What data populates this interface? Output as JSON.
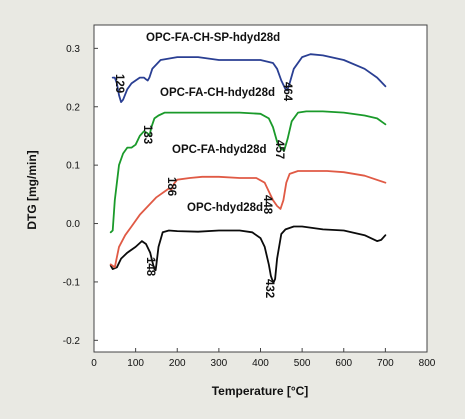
{
  "chart_data": {
    "type": "line",
    "title": "",
    "xlabel": "Temperature [°C]",
    "ylabel": "DTG [mg/min]",
    "xlim": [
      0,
      800
    ],
    "ylim": [
      -0.22,
      0.34
    ],
    "x_ticks": [
      "0",
      "100",
      "200",
      "300",
      "400",
      "500",
      "600",
      "700",
      "800"
    ],
    "y_ticks": [
      "-0.2",
      "-0.1",
      "0.0",
      "0.1",
      "0.2",
      "0.3"
    ],
    "grid": false,
    "legend": "none",
    "series": [
      {
        "name": "OPC-hdyd28d",
        "color": "#0b0b0b",
        "x": [
          40,
          45,
          55,
          65,
          80,
          100,
          115,
          125,
          135,
          140,
          145,
          148,
          150,
          155,
          165,
          180,
          200,
          250,
          300,
          350,
          380,
          400,
          410,
          420,
          425,
          430,
          432,
          435,
          440,
          450,
          460,
          480,
          500,
          550,
          600,
          650,
          680,
          690,
          700
        ],
        "y": [
          -0.072,
          -0.078,
          -0.075,
          -0.06,
          -0.05,
          -0.04,
          -0.03,
          -0.035,
          -0.05,
          -0.065,
          -0.078,
          -0.08,
          -0.07,
          -0.04,
          -0.015,
          -0.012,
          -0.013,
          -0.014,
          -0.012,
          -0.012,
          -0.015,
          -0.025,
          -0.04,
          -0.07,
          -0.09,
          -0.1,
          -0.1,
          -0.095,
          -0.06,
          -0.018,
          -0.01,
          -0.005,
          -0.005,
          -0.01,
          -0.012,
          -0.02,
          -0.03,
          -0.028,
          -0.02
        ]
      },
      {
        "name": "OPC-FA-hdyd28d",
        "color": "#e05a45",
        "x": [
          40,
          50,
          60,
          75,
          90,
          110,
          130,
          150,
          170,
          180,
          186,
          192,
          200,
          230,
          260,
          300,
          350,
          390,
          410,
          420,
          430,
          440,
          448,
          455,
          462,
          470,
          490,
          520,
          560,
          600,
          650,
          700
        ],
        "y": [
          -0.07,
          -0.075,
          -0.04,
          -0.02,
          -0.005,
          0.015,
          0.03,
          0.045,
          0.055,
          0.06,
          0.058,
          0.068,
          0.075,
          0.078,
          0.08,
          0.08,
          0.078,
          0.078,
          0.07,
          0.055,
          0.04,
          0.03,
          0.025,
          0.04,
          0.07,
          0.085,
          0.09,
          0.09,
          0.09,
          0.088,
          0.082,
          0.07
        ]
      },
      {
        "name": "OPC-FA-CH-hdyd28d",
        "color": "#1a9a2a",
        "x": [
          40,
          45,
          50,
          60,
          70,
          80,
          90,
          100,
          110,
          120,
          128,
          133,
          138,
          145,
          155,
          170,
          200,
          250,
          300,
          350,
          400,
          420,
          430,
          440,
          450,
          457,
          465,
          475,
          490,
          510,
          550,
          600,
          650,
          680,
          700
        ],
        "y": [
          -0.015,
          -0.012,
          0.04,
          0.1,
          0.12,
          0.13,
          0.13,
          0.135,
          0.15,
          0.158,
          0.155,
          0.15,
          0.165,
          0.18,
          0.185,
          0.19,
          0.19,
          0.19,
          0.19,
          0.19,
          0.188,
          0.18,
          0.165,
          0.14,
          0.128,
          0.125,
          0.145,
          0.175,
          0.19,
          0.192,
          0.192,
          0.19,
          0.185,
          0.18,
          0.17
        ]
      },
      {
        "name": "OPC-FA-CH-SP-hdyd28d",
        "color": "#2a3f93",
        "x": [
          45,
          50,
          55,
          60,
          65,
          70,
          80,
          90,
          100,
          110,
          120,
          125,
          129,
          133,
          140,
          160,
          200,
          250,
          300,
          350,
          400,
          430,
          440,
          450,
          460,
          464,
          470,
          480,
          500,
          520,
          550,
          600,
          650,
          680,
          700
        ],
        "y": [
          0.25,
          0.25,
          0.24,
          0.22,
          0.208,
          0.212,
          0.23,
          0.24,
          0.245,
          0.25,
          0.25,
          0.247,
          0.245,
          0.25,
          0.265,
          0.28,
          0.285,
          0.285,
          0.28,
          0.28,
          0.28,
          0.275,
          0.265,
          0.245,
          0.23,
          0.228,
          0.24,
          0.265,
          0.285,
          0.29,
          0.288,
          0.28,
          0.265,
          0.25,
          0.235
        ]
      }
    ],
    "series_labels": [
      "OPC-FA-CH-SP-hdyd28d",
      "OPC-FA-CH-hdyd28d",
      "OPC-FA-hdyd28d",
      "OPC-hdyd28d"
    ],
    "annotations": [
      "129",
      "464",
      "133",
      "457",
      "186",
      "448",
      "148",
      "432"
    ]
  }
}
